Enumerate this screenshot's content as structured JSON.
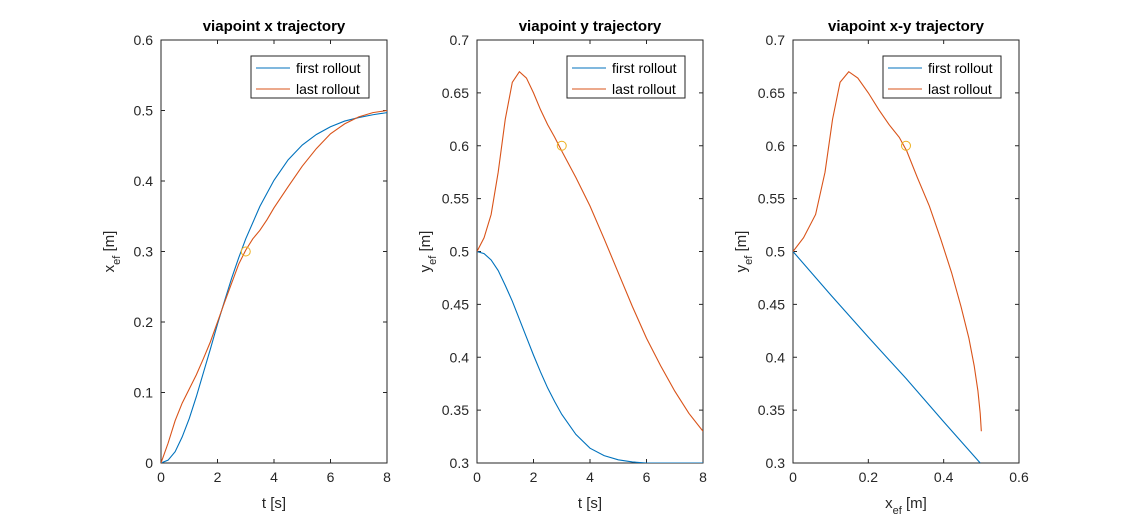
{
  "chart_data": [
    {
      "type": "line",
      "title": "viapoint x trajectory",
      "xlabel": "t [s]",
      "ylabel": {
        "base": "x",
        "sub": "ef",
        "suffix": " [m]"
      },
      "xlim": [
        0,
        8
      ],
      "ylim": [
        0,
        0.6
      ],
      "xticks": [
        0,
        2,
        4,
        6,
        8
      ],
      "xtick_labels": [
        "0",
        "2",
        "4",
        "6",
        "8"
      ],
      "yticks": [
        0,
        0.1,
        0.2,
        0.3,
        0.4,
        0.5,
        0.6
      ],
      "ytick_labels": [
        "0",
        "0.1",
        "0.2",
        "0.3",
        "0.4",
        "0.5",
        "0.6"
      ],
      "grid": false,
      "legend": {
        "position": "top-right",
        "entries": [
          "first rollout",
          "last rollout"
        ]
      },
      "series": [
        {
          "name": "first rollout",
          "color": "#0072BD",
          "x": [
            0,
            0.25,
            0.5,
            0.75,
            1,
            1.25,
            1.5,
            1.75,
            2,
            2.25,
            2.5,
            2.75,
            3,
            3.5,
            4,
            4.5,
            5,
            5.5,
            6,
            6.5,
            7,
            7.5,
            8
          ],
          "y": [
            0,
            0.004,
            0.016,
            0.037,
            0.063,
            0.094,
            0.128,
            0.162,
            0.197,
            0.23,
            0.262,
            0.291,
            0.318,
            0.364,
            0.401,
            0.43,
            0.451,
            0.466,
            0.477,
            0.485,
            0.49,
            0.494,
            0.497
          ]
        },
        {
          "name": "last rollout",
          "color": "#D95319",
          "x": [
            0,
            0.25,
            0.5,
            0.75,
            1,
            1.25,
            1.5,
            1.75,
            2,
            2.25,
            2.5,
            2.75,
            3,
            3.25,
            3.5,
            3.75,
            4,
            4.5,
            5,
            5.5,
            6,
            6.5,
            7,
            7.5,
            8
          ],
          "y": [
            0,
            0.028,
            0.06,
            0.085,
            0.105,
            0.125,
            0.148,
            0.172,
            0.2,
            0.228,
            0.255,
            0.282,
            0.302,
            0.318,
            0.33,
            0.345,
            0.362,
            0.392,
            0.421,
            0.446,
            0.467,
            0.481,
            0.491,
            0.497,
            0.5
          ]
        }
      ],
      "markers": [
        {
          "x": 3,
          "y": 0.3,
          "color": "#EDB120",
          "shape": "circle"
        }
      ]
    },
    {
      "type": "line",
      "title": "viapoint y trajectory",
      "xlabel": "t [s]",
      "ylabel": {
        "base": "y",
        "sub": "ef",
        "suffix": " [m]"
      },
      "xlim": [
        0,
        8
      ],
      "ylim": [
        0.3,
        0.7
      ],
      "xticks": [
        0,
        2,
        4,
        6,
        8
      ],
      "xtick_labels": [
        "0",
        "2",
        "4",
        "6",
        "8"
      ],
      "yticks": [
        0.3,
        0.35,
        0.4,
        0.45,
        0.5,
        0.55,
        0.6,
        0.65,
        0.7
      ],
      "ytick_labels": [
        "0.3",
        "0.35",
        "0.4",
        "0.45",
        "0.5",
        "0.55",
        "0.6",
        "0.65",
        "0.7"
      ],
      "grid": false,
      "legend": {
        "position": "top-right",
        "entries": [
          "first rollout",
          "last rollout"
        ]
      },
      "series": [
        {
          "name": "first rollout",
          "color": "#0072BD",
          "x": [
            0,
            0.25,
            0.5,
            0.75,
            1,
            1.25,
            1.5,
            1.75,
            2,
            2.25,
            2.5,
            2.75,
            3,
            3.5,
            4,
            4.5,
            5,
            5.5,
            6,
            6.5,
            7,
            7.5,
            8
          ],
          "y": [
            0.5,
            0.498,
            0.492,
            0.482,
            0.468,
            0.453,
            0.436,
            0.419,
            0.402,
            0.386,
            0.371,
            0.358,
            0.346,
            0.327,
            0.314,
            0.307,
            0.303,
            0.301,
            0.3,
            0.3,
            0.3,
            0.3,
            0.3
          ]
        },
        {
          "name": "last rollout",
          "color": "#D95319",
          "x": [
            0,
            0.25,
            0.5,
            0.75,
            1,
            1.25,
            1.5,
            1.75,
            2,
            2.25,
            2.5,
            2.75,
            3,
            3.5,
            4,
            4.5,
            5,
            5.5,
            6,
            6.5,
            7,
            7.5,
            8
          ],
          "y": [
            0.5,
            0.513,
            0.535,
            0.575,
            0.625,
            0.66,
            0.67,
            0.664,
            0.65,
            0.634,
            0.62,
            0.608,
            0.595,
            0.57,
            0.543,
            0.512,
            0.48,
            0.448,
            0.418,
            0.392,
            0.368,
            0.347,
            0.33
          ]
        }
      ],
      "markers": [
        {
          "x": 3,
          "y": 0.6,
          "color": "#EDB120",
          "shape": "circle"
        }
      ]
    },
    {
      "type": "line",
      "title": "viapoint x-y trajectory",
      "xlabel": {
        "base": "x",
        "sub": "ef",
        "suffix": " [m]"
      },
      "ylabel": {
        "base": "y",
        "sub": "ef",
        "suffix": " [m]"
      },
      "xlim": [
        0,
        0.6
      ],
      "ylim": [
        0.3,
        0.7
      ],
      "xticks": [
        0,
        0.2,
        0.4,
        0.6
      ],
      "xtick_labels": [
        "0",
        "0.2",
        "0.4",
        "0.6"
      ],
      "yticks": [
        0.3,
        0.35,
        0.4,
        0.45,
        0.5,
        0.55,
        0.6,
        0.65,
        0.7
      ],
      "ytick_labels": [
        "0.3",
        "0.35",
        "0.4",
        "0.45",
        "0.5",
        "0.55",
        "0.6",
        "0.65",
        "0.7"
      ],
      "grid": false,
      "legend": {
        "position": "top-right",
        "entries": [
          "first rollout",
          "last rollout"
        ]
      },
      "series": [
        {
          "name": "first rollout",
          "color": "#0072BD",
          "x": [
            0,
            0.1,
            0.2,
            0.3,
            0.4,
            0.497
          ],
          "y": [
            0.5,
            0.459,
            0.419,
            0.38,
            0.339,
            0.3
          ]
        },
        {
          "name": "last rollout",
          "color": "#D95319",
          "x": [
            0,
            0.028,
            0.06,
            0.085,
            0.105,
            0.125,
            0.148,
            0.172,
            0.2,
            0.228,
            0.255,
            0.282,
            0.302,
            0.33,
            0.362,
            0.392,
            0.421,
            0.446,
            0.467,
            0.481,
            0.491,
            0.497,
            0.5
          ],
          "y": [
            0.5,
            0.513,
            0.535,
            0.575,
            0.625,
            0.66,
            0.67,
            0.664,
            0.65,
            0.634,
            0.62,
            0.608,
            0.595,
            0.57,
            0.543,
            0.512,
            0.48,
            0.448,
            0.418,
            0.392,
            0.368,
            0.347,
            0.33
          ]
        }
      ],
      "markers": [
        {
          "x": 0.3,
          "y": 0.6,
          "color": "#EDB120",
          "shape": "circle"
        }
      ]
    }
  ]
}
